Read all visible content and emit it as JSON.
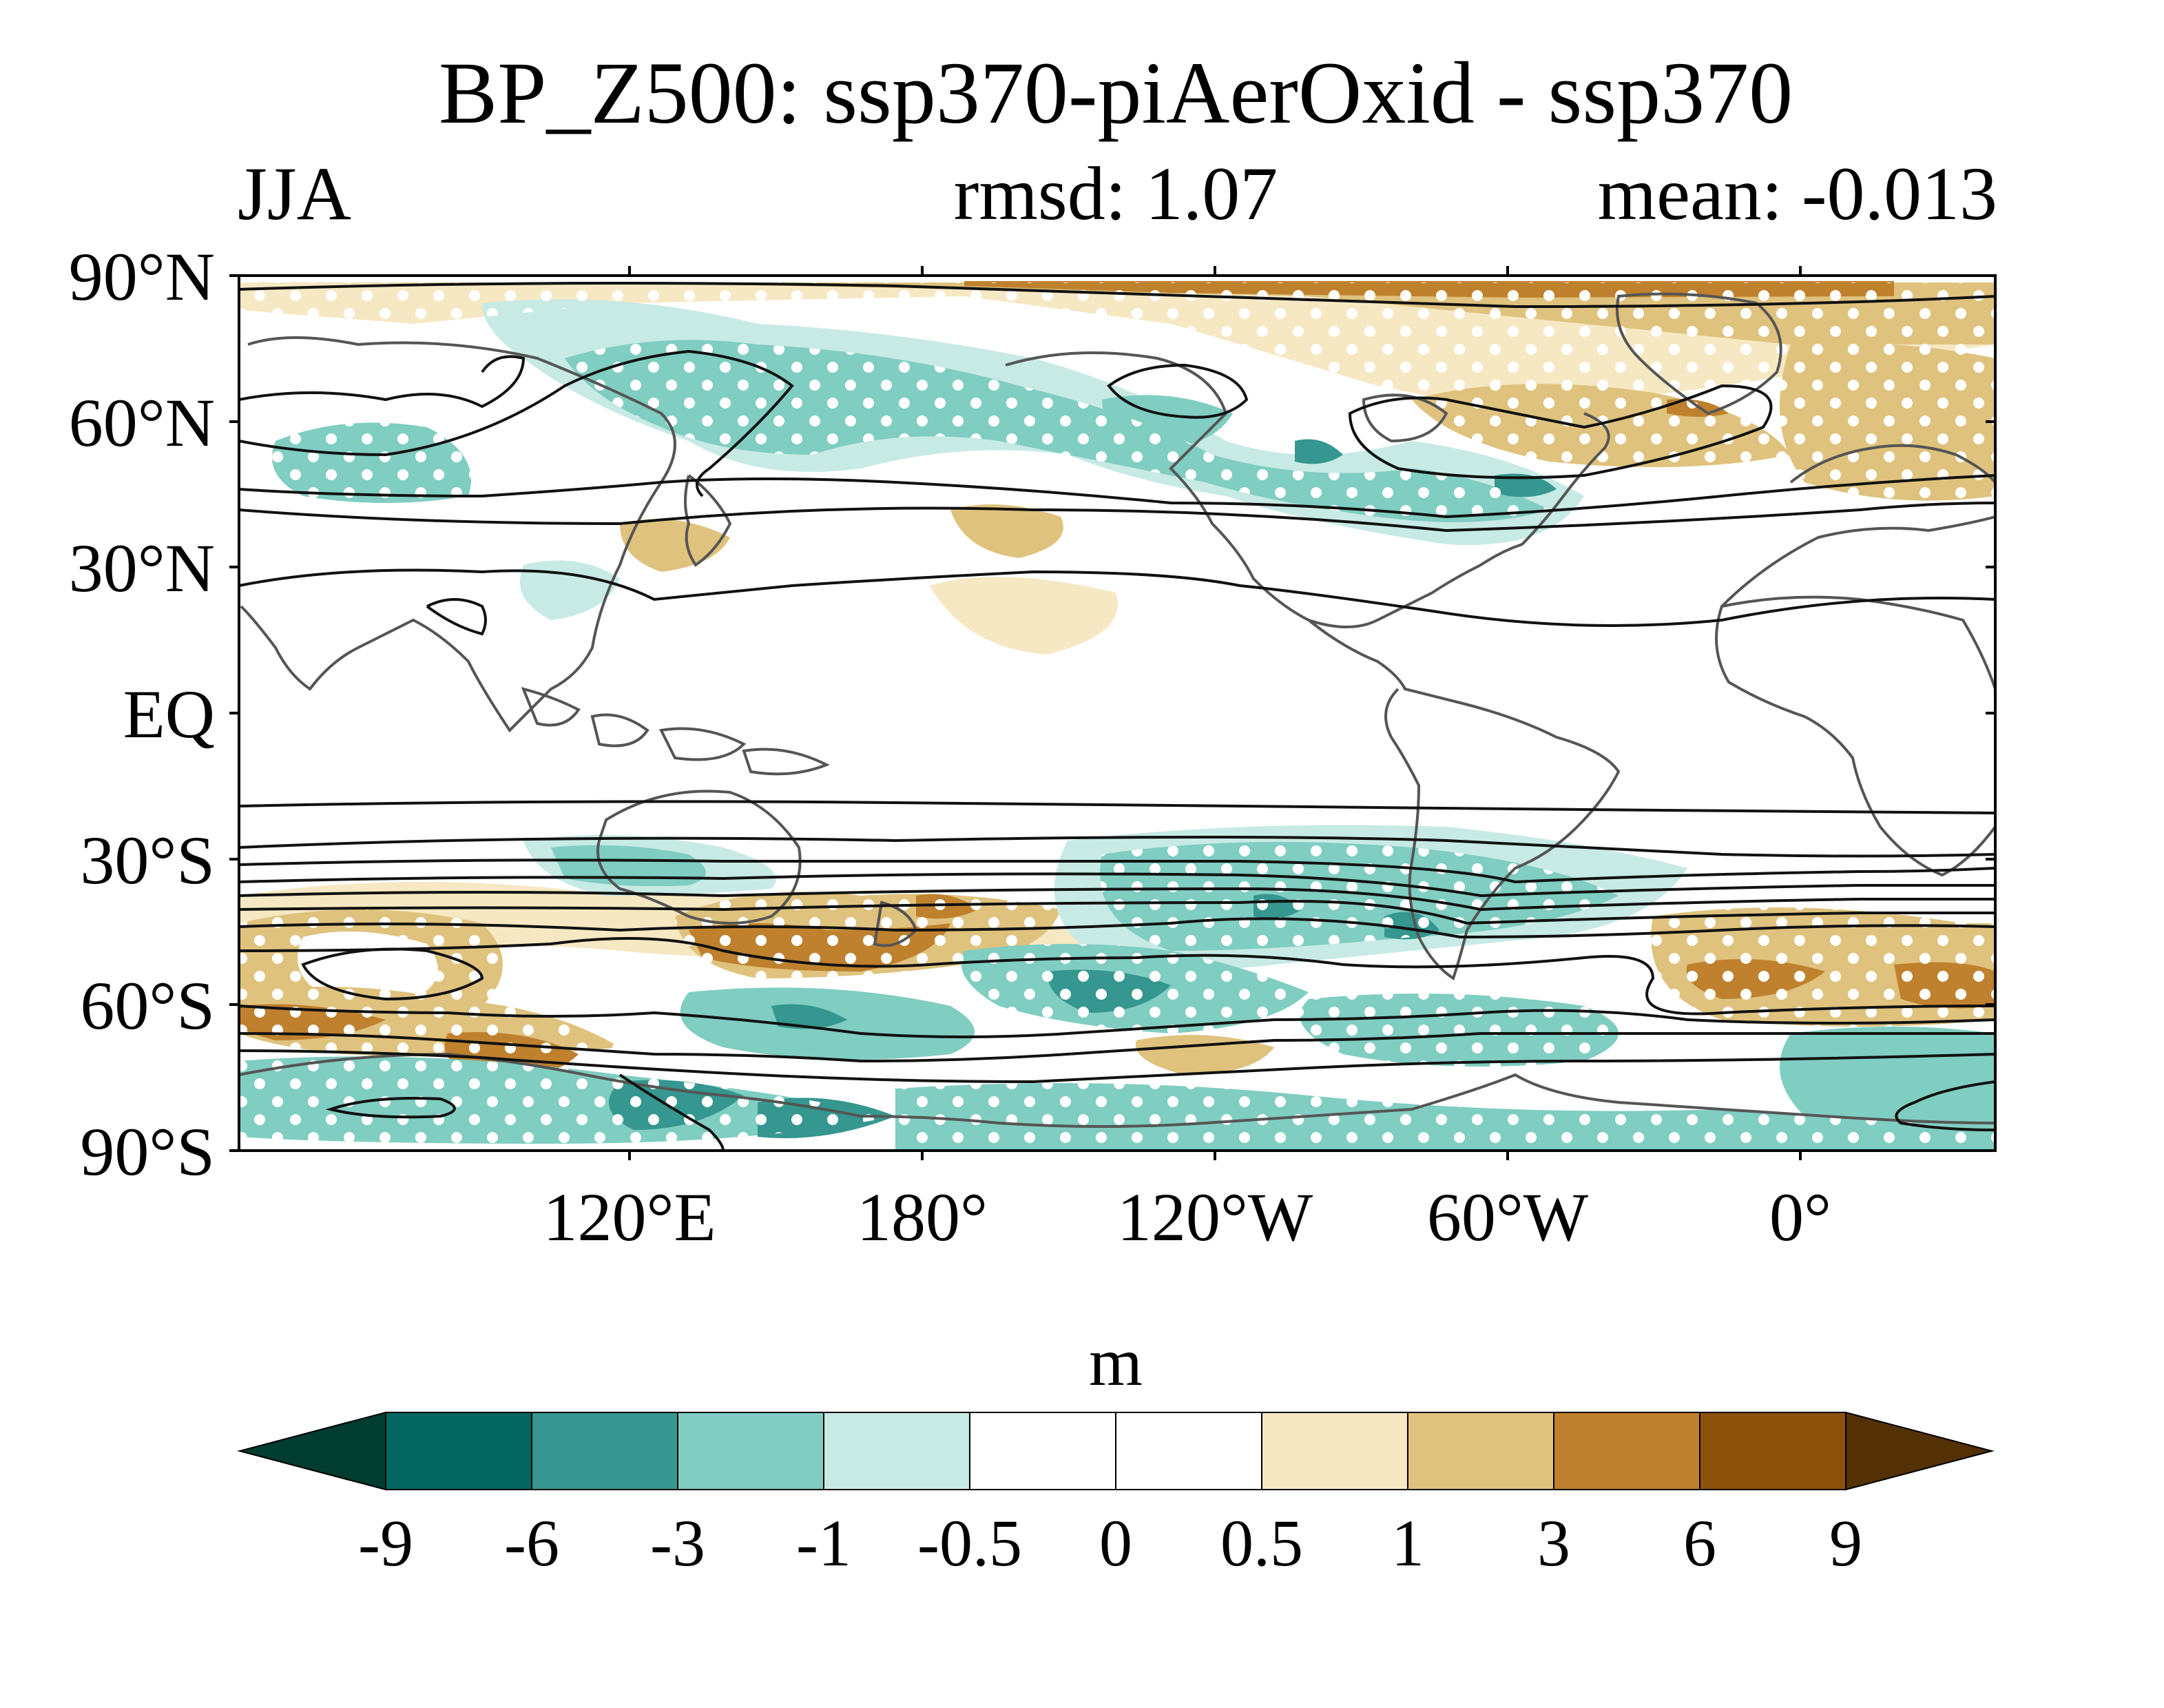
{
  "figure": {
    "title": "BP_Z500: ssp370-piAerOxid - ssp370",
    "season": "JJA",
    "rmsd": "rmsd: 1.07",
    "mean": "mean: -0.013"
  },
  "map": {
    "projection": "equirectangular",
    "lon_center": 150,
    "lat_range": [
      -90,
      90
    ],
    "lat_ticks": [
      "90°N",
      "60°N",
      "30°N",
      "EQ",
      "30°S",
      "60°S",
      "90°S"
    ],
    "lon_ticks": [
      "120°E",
      "180°",
      "120°W",
      "60°W",
      "0°"
    ],
    "field": "Z500 difference (shaded)",
    "contours": "climatology (black lines)",
    "stippling": "white dots = significant"
  },
  "colorbar": {
    "unit": "m",
    "levels": [
      "-9",
      "-6",
      "-3",
      "-1",
      "-0.5",
      "0",
      "0.5",
      "1",
      "3",
      "6",
      "9"
    ],
    "colors": [
      "#003c30",
      "#01665e",
      "#35978f",
      "#80cdc1",
      "#c7eae5",
      "#ffffff",
      "#ffffff",
      "#f6e8c3",
      "#dfc27d",
      "#bf812d",
      "#8c510a",
      "#543005"
    ]
  }
}
